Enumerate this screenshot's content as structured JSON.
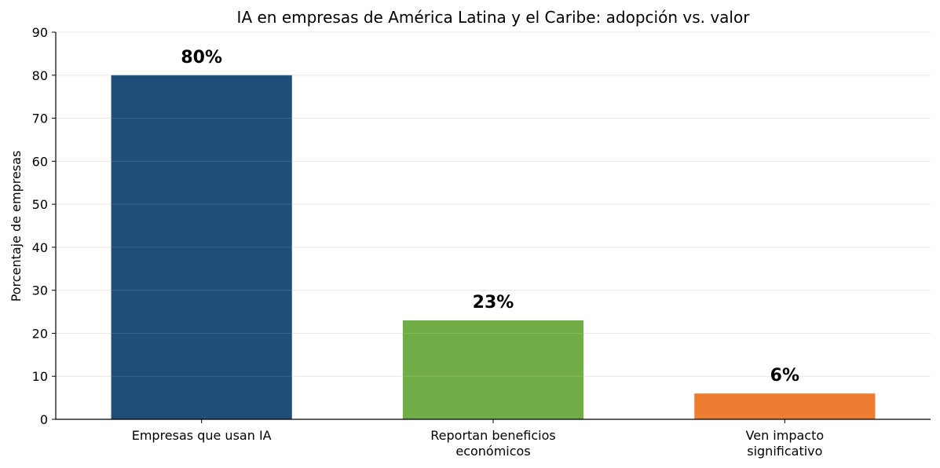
{
  "chart_data": {
    "type": "bar",
    "title": "IA en empresas de América Latina y el Caribe: adopción vs. valor",
    "xlabel": "",
    "ylabel": "Porcentaje de empresas",
    "ylim": [
      0,
      90
    ],
    "yticks": [
      0,
      10,
      20,
      30,
      40,
      50,
      60,
      70,
      80,
      90
    ],
    "grid": true,
    "categories": [
      [
        "Empresas que usan IA"
      ],
      [
        "Reportan beneficios",
        "económicos"
      ],
      [
        "Ven impacto",
        "significativo"
      ]
    ],
    "values": [
      80,
      23,
      6
    ],
    "value_labels": [
      "80%",
      "23%",
      "6%"
    ],
    "colors": [
      "#1f4e79",
      "#70ad47",
      "#ed7d31"
    ]
  }
}
